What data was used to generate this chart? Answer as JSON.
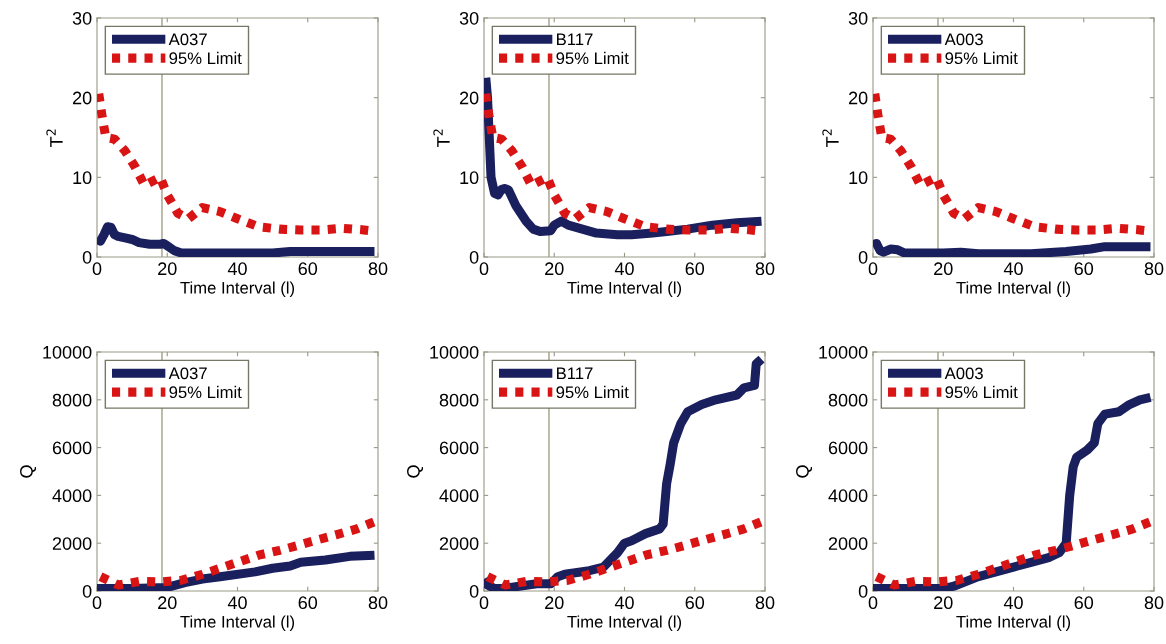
{
  "chart_data": [
    {
      "type": "line",
      "ylabel": "T$^{2}$",
      "xlabel": "Time Interval (l)",
      "xlim": [
        0,
        80
      ],
      "xticks": [
        0,
        20,
        40,
        60,
        80
      ],
      "ylim": [
        0,
        30
      ],
      "yticks": [
        0,
        10,
        20,
        30
      ],
      "grid": false,
      "legend": "top left",
      "ref_lines": [
        {
          "axis": "x",
          "value": 18.5,
          "color": "#888866"
        }
      ],
      "series": [
        {
          "name": "A037",
          "color": "#1a1f5e",
          "line_style": "solid",
          "x": [
            0,
            1,
            2,
            3,
            4,
            5,
            6,
            8,
            10,
            12,
            15,
            18,
            19,
            20,
            22,
            24,
            30,
            40,
            50,
            55,
            65,
            79
          ],
          "values": [
            2.2,
            2.0,
            2.8,
            3.8,
            3.7,
            2.8,
            2.6,
            2.4,
            2.2,
            1.8,
            1.6,
            1.6,
            1.7,
            1.4,
            0.8,
            0.5,
            0.5,
            0.5,
            0.5,
            0.7,
            0.7,
            0.7
          ]
        },
        {
          "name": "95% Limit",
          "color": "#d81414",
          "line_style": "dotted",
          "x": [
            0.5,
            1.5,
            2.5,
            5,
            8,
            11,
            13.5,
            18,
            20,
            23,
            26,
            30,
            35,
            40,
            46,
            52,
            58,
            64,
            70,
            76,
            78
          ],
          "values": [
            20.5,
            17.5,
            15,
            14.8,
            13.3,
            11.2,
            9,
            10,
            7.8,
            5.5,
            4.8,
            6.2,
            5.7,
            4.8,
            3.8,
            3.5,
            3.4,
            3.4,
            3.6,
            3.4,
            3.3
          ]
        }
      ]
    },
    {
      "type": "line",
      "ylabel": "T$^{2}$",
      "xlabel": "Time Interval (l)",
      "xlim": [
        0,
        80
      ],
      "xticks": [
        0,
        20,
        40,
        60,
        80
      ],
      "ylim": [
        0,
        30
      ],
      "yticks": [
        0,
        10,
        20,
        30
      ],
      "grid": false,
      "legend": "top left",
      "ref_lines": [
        {
          "axis": "x",
          "value": 18.5,
          "color": "#888866"
        }
      ],
      "series": [
        {
          "name": "B117",
          "color": "#1a1f5e",
          "line_style": "solid",
          "x": [
            0.5,
            1,
            1.5,
            2,
            3,
            4,
            5,
            6,
            7,
            9,
            12,
            14,
            16,
            19,
            20,
            22,
            24,
            28,
            32,
            38,
            42,
            48,
            52,
            58,
            65,
            72,
            79
          ],
          "values": [
            22.5,
            20,
            15,
            10,
            8,
            7.8,
            8.5,
            8.6,
            8.4,
            6.5,
            4.5,
            3.5,
            3.2,
            3.3,
            4,
            4.5,
            4,
            3.5,
            3,
            2.8,
            2.8,
            3,
            3.2,
            3.5,
            4,
            4.3,
            4.5
          ]
        },
        {
          "name": "95% Limit",
          "color": "#d81414",
          "line_style": "dotted",
          "x": [
            0.5,
            1.5,
            2.5,
            5,
            8,
            11,
            13.5,
            18,
            20,
            23,
            26,
            30,
            35,
            40,
            46,
            52,
            58,
            64,
            70,
            76,
            78
          ],
          "values": [
            20.5,
            17.5,
            15,
            14.8,
            13.3,
            11.2,
            9,
            10,
            7.8,
            5.5,
            4.8,
            6.2,
            5.7,
            4.8,
            3.8,
            3.5,
            3.4,
            3.4,
            3.6,
            3.4,
            3.3
          ]
        }
      ]
    },
    {
      "type": "line",
      "ylabel": "T$^{2}$",
      "xlabel": "Time Interval (l)",
      "xlim": [
        0,
        80
      ],
      "xticks": [
        0,
        20,
        40,
        60,
        80
      ],
      "ylim": [
        0,
        30
      ],
      "yticks": [
        0,
        10,
        20,
        30
      ],
      "grid": false,
      "legend": "top left",
      "ref_lines": [
        {
          "axis": "x",
          "value": 18.5,
          "color": "#888866"
        }
      ],
      "series": [
        {
          "name": "A003",
          "color": "#1a1f5e",
          "line_style": "solid",
          "x": [
            0,
            1,
            2,
            3,
            5,
            7,
            9,
            15,
            20,
            25,
            30,
            45,
            55,
            62,
            66,
            79
          ],
          "values": [
            1.5,
            1.7,
            0.8,
            0.6,
            1.0,
            0.9,
            0.5,
            0.5,
            0.5,
            0.6,
            0.4,
            0.4,
            0.7,
            1.0,
            1.3,
            1.3
          ]
        },
        {
          "name": "95% Limit",
          "color": "#d81414",
          "line_style": "dotted",
          "x": [
            0.5,
            1.5,
            2.5,
            5,
            8,
            11,
            13.5,
            18,
            20,
            23,
            26,
            30,
            35,
            40,
            46,
            52,
            58,
            64,
            70,
            76,
            78
          ],
          "values": [
            20.5,
            17.5,
            15,
            14.8,
            13.3,
            11.2,
            9,
            10,
            7.8,
            5.5,
            4.8,
            6.2,
            5.7,
            4.8,
            3.8,
            3.5,
            3.4,
            3.4,
            3.6,
            3.4,
            3.3
          ]
        }
      ]
    },
    {
      "type": "line",
      "ylabel": "Q",
      "xlabel": "Time Interval (l)",
      "xlim": [
        0,
        80
      ],
      "xticks": [
        0,
        20,
        40,
        60,
        80
      ],
      "ylim": [
        0,
        10000
      ],
      "yticks": [
        0,
        2000,
        4000,
        6000,
        8000,
        10000
      ],
      "grid": false,
      "legend": "top left",
      "ref_lines": [
        {
          "axis": "x",
          "value": 18.5,
          "color": "#888866"
        }
      ],
      "series": [
        {
          "name": "A037",
          "color": "#1a1f5e",
          "line_style": "solid",
          "x": [
            0,
            10,
            20,
            25,
            30,
            35,
            45,
            50,
            55,
            58,
            65,
            72,
            79
          ],
          "values": [
            100,
            100,
            150,
            350,
            500,
            600,
            800,
            950,
            1050,
            1200,
            1300,
            1450,
            1500
          ]
        },
        {
          "name": "95% Limit",
          "color": "#d81414",
          "line_style": "dotted",
          "x": [
            1,
            6,
            12,
            18,
            24,
            30,
            35,
            40,
            46,
            52,
            57,
            63,
            68,
            74,
            79
          ],
          "values": [
            600,
            250,
            400,
            380,
            450,
            700,
            950,
            1200,
            1500,
            1700,
            1900,
            2150,
            2350,
            2600,
            2900
          ]
        }
      ]
    },
    {
      "type": "line",
      "ylabel": "Q",
      "xlabel": "Time Interval (l)",
      "xlim": [
        0,
        80
      ],
      "xticks": [
        0,
        20,
        40,
        60,
        80
      ],
      "ylim": [
        0,
        10000
      ],
      "yticks": [
        0,
        2000,
        4000,
        6000,
        8000,
        10000
      ],
      "grid": false,
      "legend": "top left",
      "ref_lines": [
        {
          "axis": "x",
          "value": 18.5,
          "color": "#888866"
        }
      ],
      "series": [
        {
          "name": "B117",
          "color": "#1a1f5e",
          "line_style": "solid",
          "x": [
            0,
            1,
            3,
            5,
            10,
            15,
            19,
            21,
            23,
            30,
            34,
            36,
            38,
            40,
            42,
            46,
            50,
            51,
            52,
            53,
            54,
            56,
            58,
            62,
            66,
            72,
            74,
            77,
            77.5,
            79
          ],
          "values": [
            500,
            250,
            100,
            100,
            200,
            300,
            300,
            600,
            700,
            850,
            1000,
            1300,
            1600,
            2000,
            2100,
            2400,
            2600,
            2800,
            4500,
            5300,
            6200,
            7000,
            7500,
            7800,
            8000,
            8200,
            8500,
            8600,
            9500,
            9700
          ]
        },
        {
          "name": "95% Limit",
          "color": "#d81414",
          "line_style": "dotted",
          "x": [
            1,
            6,
            12,
            18,
            24,
            30,
            35,
            40,
            46,
            52,
            57,
            63,
            68,
            74,
            79
          ],
          "values": [
            600,
            250,
            400,
            380,
            450,
            700,
            950,
            1200,
            1500,
            1700,
            1900,
            2150,
            2350,
            2600,
            2900
          ]
        }
      ]
    },
    {
      "type": "line",
      "ylabel": "Q",
      "xlabel": "Time Interval (l)",
      "xlim": [
        0,
        80
      ],
      "xticks": [
        0,
        20,
        40,
        60,
        80
      ],
      "ylim": [
        0,
        10000
      ],
      "yticks": [
        0,
        2000,
        4000,
        6000,
        8000,
        10000
      ],
      "grid": false,
      "legend": "top left",
      "ref_lines": [
        {
          "axis": "x",
          "value": 18.5,
          "color": "#888866"
        }
      ],
      "series": [
        {
          "name": "A003",
          "color": "#1a1f5e",
          "line_style": "solid",
          "x": [
            0,
            10,
            20,
            23,
            30,
            35,
            40,
            45,
            50,
            53,
            55,
            56,
            57,
            58,
            61,
            63,
            64,
            66,
            70,
            73,
            76,
            79
          ],
          "values": [
            100,
            100,
            100,
            200,
            600,
            800,
            1000,
            1200,
            1400,
            1600,
            2000,
            4000,
            5200,
            5600,
            5900,
            6200,
            7000,
            7400,
            7500,
            7800,
            8000,
            8100
          ]
        },
        {
          "name": "95% Limit",
          "color": "#d81414",
          "line_style": "dotted",
          "x": [
            1,
            6,
            12,
            18,
            24,
            30,
            35,
            40,
            46,
            52,
            57,
            63,
            68,
            74,
            79
          ],
          "values": [
            600,
            250,
            400,
            380,
            450,
            700,
            950,
            1200,
            1500,
            1700,
            1900,
            2150,
            2350,
            2600,
            2900
          ]
        }
      ]
    }
  ]
}
